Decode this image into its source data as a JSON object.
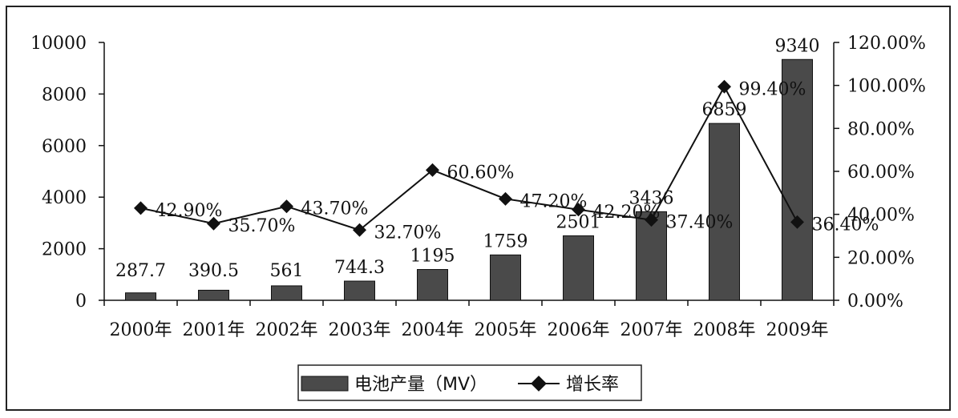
{
  "chart_data": {
    "type": "bar",
    "categories": [
      "2000年",
      "2001年",
      "2002年",
      "2003年",
      "2004年",
      "2005年",
      "2006年",
      "2007年",
      "2008年",
      "2009年"
    ],
    "series": [
      {
        "name": "电池产量（MV）",
        "type": "bar",
        "axis": "left",
        "values": [
          287.7,
          390.5,
          561,
          744.3,
          1195,
          1759,
          2501,
          3436,
          6859,
          9340
        ],
        "labels": [
          "287.7",
          "390.5",
          "561",
          "744.3",
          "1195",
          "1759",
          "2501",
          "3436",
          "6859",
          "9340"
        ]
      },
      {
        "name": "增长率",
        "type": "line",
        "axis": "right",
        "values": [
          42.9,
          35.7,
          43.7,
          32.7,
          60.6,
          47.2,
          42.2,
          37.4,
          99.4,
          36.4
        ],
        "labels": [
          "42.90%",
          "35.70%",
          "43.70%",
          "32.70%",
          "60.60%",
          "47.20%",
          "42.20%",
          "37.40%",
          "99.40%",
          "36.40%"
        ]
      }
    ],
    "y_left": {
      "ylim": [
        0,
        10000
      ],
      "ticks": [
        "0",
        "2000",
        "4000",
        "6000",
        "8000",
        "10000"
      ]
    },
    "y_right": {
      "ylim": [
        0,
        120
      ],
      "ticks": [
        "0.00%",
        "20.00%",
        "40.00%",
        "60.00%",
        "80.00%",
        "100.00%",
        "120.00%"
      ]
    },
    "grid": false,
    "legend_position": "bottom",
    "colors": {
      "bar": "#4a4a4a",
      "line": "#111111",
      "marker": "#111111"
    }
  }
}
